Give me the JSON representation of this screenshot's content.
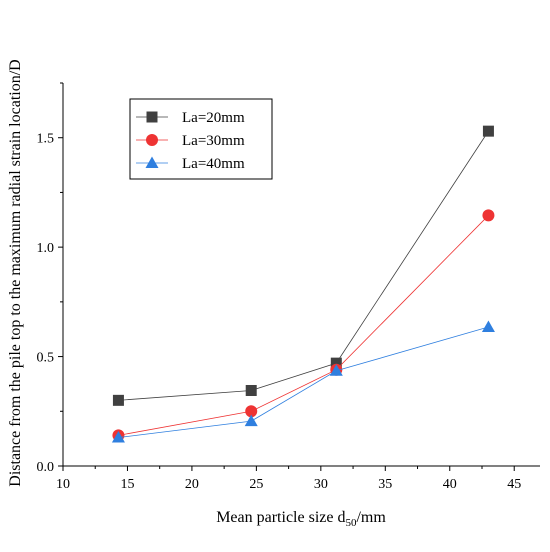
{
  "chart_data": {
    "type": "line",
    "title": "",
    "xlabel": "Mean particle size d",
    "xlabel_sub": "50",
    "xlabel_suffix": "/mm",
    "ylabel": "Distance from the pile top to the maximum radial strain location/D",
    "xlim": [
      10,
      47
    ],
    "ylim": [
      0,
      1.75
    ],
    "xticks": [
      10,
      15,
      20,
      25,
      30,
      35,
      40,
      45
    ],
    "yticks": [
      0.0,
      0.5,
      1.0,
      1.5
    ],
    "xtick_labels": [
      "10",
      "15",
      "20",
      "25",
      "30",
      "35",
      "40",
      "45"
    ],
    "ytick_labels": [
      "0.0",
      "0.5",
      "1.0",
      "1.5"
    ],
    "grid": false,
    "legend_position": "top-left",
    "x": [
      14.3,
      24.6,
      31.2,
      43.0
    ],
    "series": [
      {
        "name": "La=20mm",
        "marker": "square",
        "color": "#404040",
        "values": [
          0.3,
          0.345,
          0.47,
          1.53
        ]
      },
      {
        "name": "La=30mm",
        "marker": "circle",
        "color": "#ee3333",
        "values": [
          0.14,
          0.25,
          0.44,
          1.145
        ]
      },
      {
        "name": "La=40mm",
        "marker": "triangle",
        "color": "#2f7fdf",
        "values": [
          0.13,
          0.205,
          0.435,
          0.635
        ]
      }
    ]
  }
}
